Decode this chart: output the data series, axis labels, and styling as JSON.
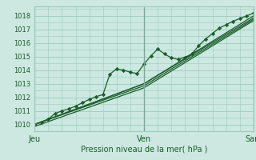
{
  "bg_color": "#cce8e0",
  "grid_color": "#99ccbb",
  "line_color": "#1a5c2a",
  "xlabel": "Pression niveau de la mer( hPa )",
  "ylim": [
    1009.5,
    1018.7
  ],
  "xlim": [
    0,
    96
  ],
  "yticks": [
    1010,
    1011,
    1012,
    1013,
    1014,
    1015,
    1016,
    1017,
    1018
  ],
  "xtick_positions": [
    0,
    48,
    96
  ],
  "xtick_labels": [
    "Jeu",
    "Ven",
    "Sam"
  ],
  "series": [
    [
      0,
      1010.0,
      3,
      1010.15,
      6,
      1010.4,
      9,
      1010.8,
      12,
      1011.0,
      15,
      1011.15,
      18,
      1011.35,
      21,
      1011.6,
      24,
      1011.85,
      27,
      1012.05,
      30,
      1012.2,
      33,
      1013.7,
      36,
      1014.1,
      39,
      1014.0,
      42,
      1013.85,
      45,
      1013.75,
      48,
      1014.45,
      51,
      1015.05,
      54,
      1015.55,
      57,
      1015.2,
      60,
      1014.9,
      63,
      1014.8,
      66,
      1014.95,
      69,
      1015.2,
      72,
      1015.8,
      75,
      1016.3,
      78,
      1016.7,
      81,
      1017.1,
      84,
      1017.35,
      87,
      1017.6,
      90,
      1017.8,
      93,
      1018.0,
      96,
      1018.2
    ],
    [
      0,
      1010.0,
      48,
      1013.0,
      96,
      1018.0
    ],
    [
      0,
      1010.0,
      48,
      1013.0,
      96,
      1017.85
    ],
    [
      0,
      1010.0,
      48,
      1012.85,
      96,
      1017.75
    ],
    [
      0,
      1009.85,
      48,
      1012.7,
      96,
      1017.65
    ]
  ],
  "marker_series": 0,
  "marker": "D",
  "markersize": 2.2,
  "linewidth": 0.9,
  "figsize": [
    3.2,
    2.0
  ],
  "dpi": 100
}
